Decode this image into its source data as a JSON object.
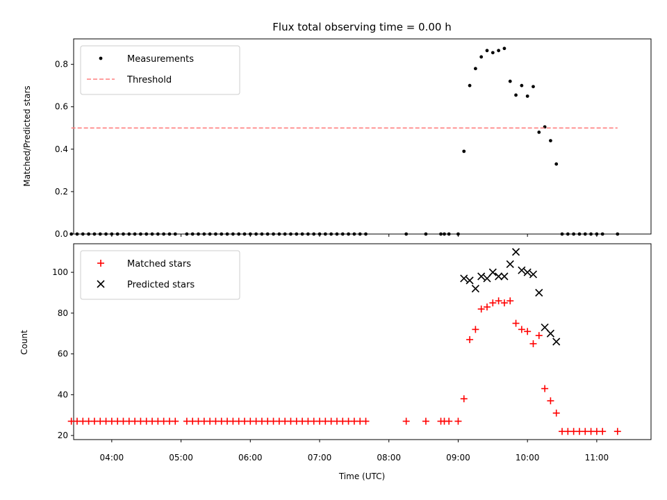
{
  "chart_data": [
    {
      "type": "scatter",
      "title": "Flux total observing time = 0.00 h",
      "ylabel": "Matched/Predicted stars",
      "xlabel": "",
      "ylim": [
        0,
        0.92
      ],
      "xlim": [
        "03:27",
        "11:47"
      ],
      "yticks": [
        "0.0",
        "0.2",
        "0.4",
        "0.6",
        "0.8"
      ],
      "legend_position": "top-left",
      "series": [
        {
          "name": "Measurements",
          "marker": "dot",
          "color": "#000000",
          "points": [
            [
              "03:25",
              0
            ],
            [
              "03:30",
              0
            ],
            [
              "03:35",
              0
            ],
            [
              "03:40",
              0
            ],
            [
              "03:45",
              0
            ],
            [
              "03:50",
              0
            ],
            [
              "03:55",
              0
            ],
            [
              "04:00",
              0
            ],
            [
              "04:05",
              0
            ],
            [
              "04:10",
              0
            ],
            [
              "04:15",
              0
            ],
            [
              "04:20",
              0
            ],
            [
              "04:25",
              0
            ],
            [
              "04:30",
              0
            ],
            [
              "04:35",
              0
            ],
            [
              "04:40",
              0
            ],
            [
              "04:45",
              0
            ],
            [
              "04:50",
              0
            ],
            [
              "04:55",
              0
            ],
            [
              "05:05",
              0
            ],
            [
              "05:10",
              0
            ],
            [
              "05:15",
              0
            ],
            [
              "05:20",
              0
            ],
            [
              "05:25",
              0
            ],
            [
              "05:30",
              0
            ],
            [
              "05:35",
              0
            ],
            [
              "05:40",
              0
            ],
            [
              "05:45",
              0
            ],
            [
              "05:50",
              0
            ],
            [
              "05:55",
              0
            ],
            [
              "06:00",
              0
            ],
            [
              "06:05",
              0
            ],
            [
              "06:10",
              0
            ],
            [
              "06:15",
              0
            ],
            [
              "06:20",
              0
            ],
            [
              "06:25",
              0
            ],
            [
              "06:30",
              0
            ],
            [
              "06:35",
              0
            ],
            [
              "06:40",
              0
            ],
            [
              "06:45",
              0
            ],
            [
              "06:50",
              0
            ],
            [
              "06:55",
              0
            ],
            [
              "07:00",
              0
            ],
            [
              "07:05",
              0
            ],
            [
              "07:10",
              0
            ],
            [
              "07:15",
              0
            ],
            [
              "07:20",
              0
            ],
            [
              "07:25",
              0
            ],
            [
              "07:30",
              0
            ],
            [
              "07:35",
              0
            ],
            [
              "07:40",
              0
            ],
            [
              "08:15",
              0
            ],
            [
              "08:32",
              0
            ],
            [
              "08:45",
              0
            ],
            [
              "08:48",
              0
            ],
            [
              "08:52",
              0
            ],
            [
              "09:00",
              0
            ],
            [
              "09:05",
              0.39
            ],
            [
              "09:10",
              0.7
            ],
            [
              "09:15",
              0.78
            ],
            [
              "09:20",
              0.835
            ],
            [
              "09:25",
              0.865
            ],
            [
              "09:30",
              0.855
            ],
            [
              "09:35",
              0.865
            ],
            [
              "09:40",
              0.875
            ],
            [
              "09:45",
              0.72
            ],
            [
              "09:50",
              0.655
            ],
            [
              "09:55",
              0.7
            ],
            [
              "10:00",
              0.65
            ],
            [
              "10:05",
              0.695
            ],
            [
              "10:10",
              0.48
            ],
            [
              "10:15",
              0.505
            ],
            [
              "10:20",
              0.44
            ],
            [
              "10:25",
              0.33
            ],
            [
              "10:30",
              0
            ],
            [
              "10:35",
              0
            ],
            [
              "10:40",
              0
            ],
            [
              "10:45",
              0
            ],
            [
              "10:50",
              0
            ],
            [
              "10:55",
              0
            ],
            [
              "11:00",
              0
            ],
            [
              "11:05",
              0
            ],
            [
              "11:18",
              0
            ]
          ]
        },
        {
          "name": "Threshold",
          "marker": "dashed-line",
          "color": "#ff7f7f",
          "points": [
            [
              "03:25",
              0.5
            ],
            [
              "11:18",
              0.5
            ]
          ]
        }
      ]
    },
    {
      "type": "scatter",
      "title": "",
      "ylabel": "Count",
      "xlabel": "Time (UTC)",
      "ylim": [
        18,
        114
      ],
      "xlim": [
        "03:27",
        "11:47"
      ],
      "yticks": [
        "20",
        "40",
        "60",
        "80",
        "100"
      ],
      "xticks": [
        "04:00",
        "05:00",
        "06:00",
        "07:00",
        "08:00",
        "09:00",
        "10:00",
        "11:00"
      ],
      "legend_position": "top-left",
      "series": [
        {
          "name": "Matched stars",
          "marker": "plus",
          "color": "#ff0000",
          "points": [
            [
              "03:25",
              27
            ],
            [
              "03:30",
              27
            ],
            [
              "03:35",
              27
            ],
            [
              "03:40",
              27
            ],
            [
              "03:45",
              27
            ],
            [
              "03:50",
              27
            ],
            [
              "03:55",
              27
            ],
            [
              "04:00",
              27
            ],
            [
              "04:05",
              27
            ],
            [
              "04:10",
              27
            ],
            [
              "04:15",
              27
            ],
            [
              "04:20",
              27
            ],
            [
              "04:25",
              27
            ],
            [
              "04:30",
              27
            ],
            [
              "04:35",
              27
            ],
            [
              "04:40",
              27
            ],
            [
              "04:45",
              27
            ],
            [
              "04:50",
              27
            ],
            [
              "04:55",
              27
            ],
            [
              "05:05",
              27
            ],
            [
              "05:10",
              27
            ],
            [
              "05:15",
              27
            ],
            [
              "05:20",
              27
            ],
            [
              "05:25",
              27
            ],
            [
              "05:30",
              27
            ],
            [
              "05:35",
              27
            ],
            [
              "05:40",
              27
            ],
            [
              "05:45",
              27
            ],
            [
              "05:50",
              27
            ],
            [
              "05:55",
              27
            ],
            [
              "06:00",
              27
            ],
            [
              "06:05",
              27
            ],
            [
              "06:10",
              27
            ],
            [
              "06:15",
              27
            ],
            [
              "06:20",
              27
            ],
            [
              "06:25",
              27
            ],
            [
              "06:30",
              27
            ],
            [
              "06:35",
              27
            ],
            [
              "06:40",
              27
            ],
            [
              "06:45",
              27
            ],
            [
              "06:50",
              27
            ],
            [
              "06:55",
              27
            ],
            [
              "07:00",
              27
            ],
            [
              "07:05",
              27
            ],
            [
              "07:10",
              27
            ],
            [
              "07:15",
              27
            ],
            [
              "07:20",
              27
            ],
            [
              "07:25",
              27
            ],
            [
              "07:30",
              27
            ],
            [
              "07:35",
              27
            ],
            [
              "07:40",
              27
            ],
            [
              "08:15",
              27
            ],
            [
              "08:32",
              27
            ],
            [
              "08:45",
              27
            ],
            [
              "08:48",
              27
            ],
            [
              "08:52",
              27
            ],
            [
              "09:00",
              27
            ],
            [
              "09:05",
              38
            ],
            [
              "09:10",
              67
            ],
            [
              "09:15",
              72
            ],
            [
              "09:20",
              82
            ],
            [
              "09:25",
              83
            ],
            [
              "09:30",
              85
            ],
            [
              "09:35",
              86
            ],
            [
              "09:40",
              85
            ],
            [
              "09:45",
              86
            ],
            [
              "09:50",
              75
            ],
            [
              "09:55",
              72
            ],
            [
              "10:00",
              71
            ],
            [
              "10:05",
              65
            ],
            [
              "10:10",
              69
            ],
            [
              "10:15",
              43
            ],
            [
              "10:20",
              37
            ],
            [
              "10:25",
              31
            ],
            [
              "10:30",
              22
            ],
            [
              "10:35",
              22
            ],
            [
              "10:40",
              22
            ],
            [
              "10:45",
              22
            ],
            [
              "10:50",
              22
            ],
            [
              "10:55",
              22
            ],
            [
              "11:00",
              22
            ],
            [
              "11:05",
              22
            ],
            [
              "11:18",
              22
            ]
          ]
        },
        {
          "name": "Predicted stars",
          "marker": "x",
          "color": "#000000",
          "points": [
            [
              "09:05",
              97
            ],
            [
              "09:10",
              96
            ],
            [
              "09:15",
              92
            ],
            [
              "09:20",
              98
            ],
            [
              "09:25",
              97
            ],
            [
              "09:30",
              100
            ],
            [
              "09:35",
              98
            ],
            [
              "09:40",
              98
            ],
            [
              "09:45",
              104
            ],
            [
              "09:50",
              110
            ],
            [
              "09:55",
              101
            ],
            [
              "10:00",
              100
            ],
            [
              "10:05",
              99
            ],
            [
              "10:10",
              90
            ],
            [
              "10:15",
              73
            ],
            [
              "10:20",
              70
            ],
            [
              "10:25",
              66
            ]
          ]
        }
      ]
    }
  ]
}
